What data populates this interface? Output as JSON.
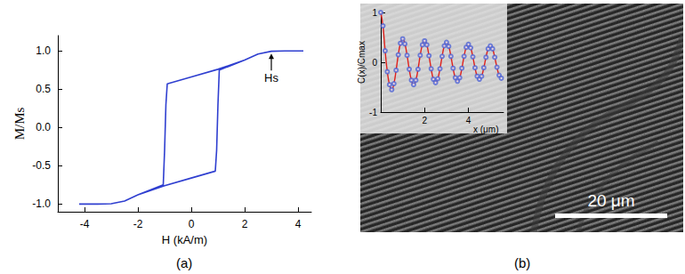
{
  "chart_data": [
    {
      "type": "line",
      "title": "(a)",
      "x_label": "H (kA/m)",
      "y_label": "M/Ms",
      "x": [
        4.2,
        3.5,
        3.0,
        2.5,
        2.0,
        1.0,
        0.0,
        -0.9,
        -0.95,
        -1.0,
        -1.05,
        -2.0,
        -2.5,
        -3.0,
        -3.5,
        -4.2,
        -3.5,
        -3.0,
        -2.5,
        -2.0,
        -1.0,
        0.0,
        0.9,
        0.95,
        1.0,
        1.05,
        2.0,
        2.5,
        3.0,
        3.5,
        4.2
      ],
      "values": [
        1.0,
        1.0,
        0.995,
        0.96,
        0.88,
        0.76,
        0.66,
        0.57,
        0.3,
        -0.3,
        -0.75,
        -0.88,
        -0.96,
        -0.995,
        -1.0,
        -1.0,
        -1.0,
        -0.995,
        -0.96,
        -0.88,
        -0.76,
        -0.66,
        -0.57,
        -0.3,
        0.3,
        0.75,
        0.88,
        0.96,
        0.995,
        1.0,
        1.0
      ],
      "color": "#2f3fd0",
      "xlim": [
        -5,
        4.5
      ],
      "xticks": [
        -4,
        -2,
        0,
        2,
        4
      ],
      "ylim": [
        -1.1,
        1.2
      ],
      "yticks": [
        {
          "value": -1,
          "label": "-1.0"
        },
        -0.5,
        {
          "value": 0,
          "label": "0.0"
        },
        0.5,
        {
          "value": 1,
          "label": "1.0"
        }
      ],
      "grid": false,
      "annotations": [
        {
          "text": "Hs",
          "x": 3,
          "y": 1.0
        }
      ]
    },
    {
      "type": "line",
      "title": "(b)",
      "x_label": "x (μm)",
      "y_label": "C(x)/Cmax",
      "x": [
        0.0,
        0.1,
        0.2,
        0.3,
        0.4,
        0.5,
        0.6,
        0.7,
        0.8,
        0.9,
        1.0,
        1.1,
        1.2,
        1.3,
        1.4,
        1.5,
        1.6,
        1.7,
        1.8,
        1.9,
        2.0,
        2.1,
        2.2,
        2.3,
        2.4,
        2.5,
        2.6,
        2.7,
        2.8,
        2.9,
        3.0,
        3.1,
        3.2,
        3.3,
        3.4,
        3.5,
        3.6,
        3.7,
        3.8,
        3.9,
        4.0,
        4.1,
        4.2,
        4.3,
        4.4,
        4.5,
        4.6,
        4.7,
        4.8,
        4.9,
        5.0,
        5.1,
        5.2,
        5.3,
        5.4,
        5.5
      ],
      "series": [
        {
          "type": "line",
          "color": "#e0201b",
          "marker": "none",
          "line_style": "solid",
          "values": [
            1.0,
            0.73,
            0.23,
            -0.19,
            -0.45,
            -0.55,
            -0.43,
            -0.16,
            0.15,
            0.38,
            0.47,
            0.37,
            0.14,
            -0.14,
            -0.36,
            -0.45,
            -0.36,
            -0.14,
            0.14,
            0.35,
            0.43,
            0.35,
            0.13,
            -0.13,
            -0.34,
            -0.41,
            -0.33,
            -0.13,
            0.12,
            0.33,
            0.4,
            0.32,
            0.12,
            -0.12,
            -0.31,
            -0.38,
            -0.31,
            -0.12,
            0.12,
            0.3,
            0.36,
            0.29,
            0.11,
            -0.11,
            -0.28,
            -0.34,
            -0.28,
            -0.11,
            0.1,
            0.27,
            0.33,
            0.27,
            0.1,
            -0.1,
            -0.26,
            -0.32
          ]
        },
        {
          "type": "scatter",
          "color": "#4f63d2",
          "marker": "open_circle",
          "values": [
            1.0,
            0.73,
            0.23,
            -0.19,
            -0.45,
            -0.55,
            -0.43,
            -0.16,
            0.15,
            0.38,
            0.47,
            0.37,
            0.14,
            -0.14,
            -0.36,
            -0.45,
            -0.36,
            -0.14,
            0.14,
            0.35,
            0.43,
            0.35,
            0.13,
            -0.13,
            -0.34,
            -0.41,
            -0.33,
            -0.13,
            0.12,
            0.33,
            0.4,
            0.32,
            0.12,
            -0.12,
            -0.31,
            -0.38,
            -0.31,
            -0.12,
            0.12,
            0.3,
            0.36,
            0.29,
            0.11,
            -0.11,
            -0.28,
            -0.34,
            -0.28,
            -0.11,
            0.1,
            0.27,
            0.33,
            0.27,
            0.1,
            -0.1,
            -0.26,
            -0.32
          ]
        }
      ],
      "xlim": [
        0,
        5.6
      ],
      "xticks": [
        2,
        4
      ],
      "ylim": [
        -1,
        1
      ],
      "yticks": [
        -1,
        0,
        1
      ],
      "grid": false,
      "annotations": [
        {
          "text": "20 μm"
        }
      ]
    }
  ]
}
